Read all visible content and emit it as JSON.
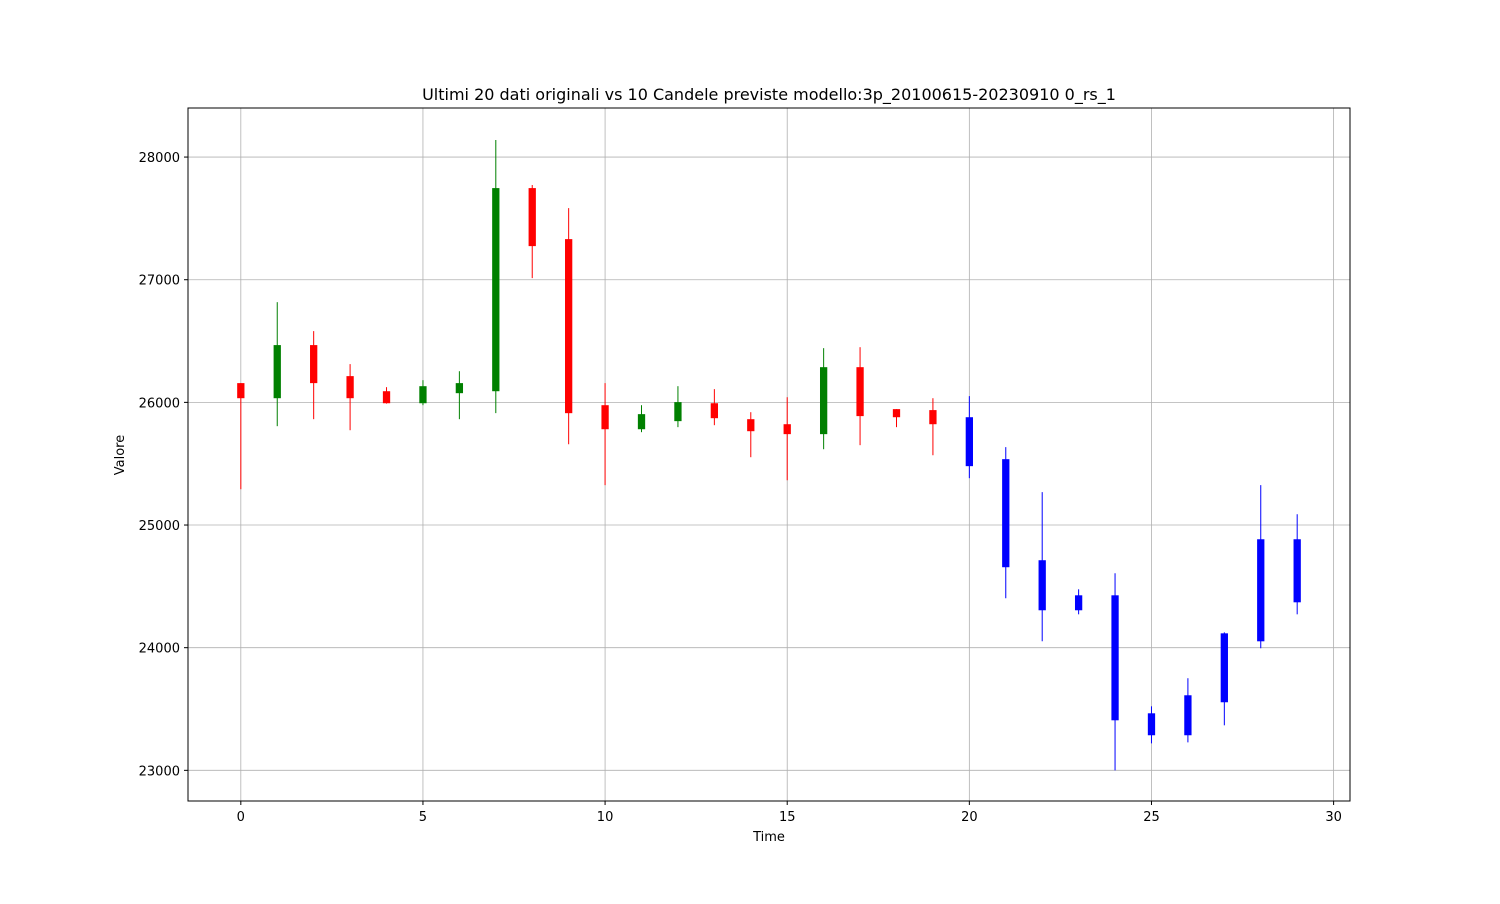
{
  "chart_data": {
    "type": "candlestick",
    "title": "Ultimi 20 dati originali vs 10 Candele previste modello:3p_20100615-20230910 0_rs_1",
    "x_label": "Time",
    "y_label": "Valore",
    "x": [
      0,
      1,
      2,
      3,
      4,
      5,
      6,
      7,
      8,
      9,
      10,
      11,
      12,
      13,
      14,
      15,
      16,
      17,
      18,
      19,
      20,
      21,
      22,
      23,
      24,
      25,
      26,
      27,
      28,
      29
    ],
    "open": [
      26157,
      26034,
      26467,
      26214,
      26091,
      25993,
      26075,
      26091,
      27747,
      27331,
      25977,
      25781,
      25847,
      25993,
      25863,
      25822,
      25741,
      26287,
      25945,
      25937,
      25879,
      25537,
      24713,
      24427,
      24427,
      23286,
      23286,
      23555,
      24052,
      24370
    ],
    "high": [
      26157,
      26817,
      26581,
      26312,
      26124,
      26181,
      26254,
      28139,
      27772,
      27584,
      26157,
      25977,
      26132,
      26108,
      25920,
      26042,
      26442,
      26450,
      25945,
      26034,
      26051,
      25635,
      25268,
      24476,
      24607,
      23522,
      23751,
      24125,
      25325,
      25088
    ],
    "low": [
      25292,
      25806,
      25863,
      25773,
      25990,
      25977,
      25863,
      25912,
      27013,
      25659,
      25325,
      25757,
      25798,
      25814,
      25553,
      25365,
      25618,
      25651,
      25798,
      25569,
      25382,
      24403,
      24052,
      24272,
      23000,
      23220,
      23228,
      23367,
      23995,
      24272
    ],
    "close": [
      26034,
      26467,
      26157,
      26034,
      25993,
      26132,
      26157,
      27747,
      27274,
      25912,
      25781,
      25904,
      26002,
      25871,
      25765,
      25741,
      26287,
      25888,
      25879,
      25822,
      25480,
      24656,
      24305,
      24305,
      23408,
      23465,
      23612,
      24117,
      24884,
      24884
    ],
    "colors": [
      "red",
      "green",
      "red",
      "red",
      "red",
      "green",
      "green",
      "green",
      "red",
      "red",
      "red",
      "green",
      "green",
      "red",
      "red",
      "red",
      "green",
      "red",
      "red",
      "red",
      "blue",
      "blue",
      "blue",
      "blue",
      "blue",
      "blue",
      "blue",
      "blue",
      "blue",
      "blue"
    ],
    "xlim": [
      -1.45,
      30.45
    ],
    "ylim": [
      22750,
      28400
    ],
    "xticks": [
      0,
      5,
      10,
      15,
      20,
      25,
      30
    ],
    "yticks": [
      23000,
      24000,
      25000,
      26000,
      27000,
      28000
    ],
    "grid": true
  }
}
